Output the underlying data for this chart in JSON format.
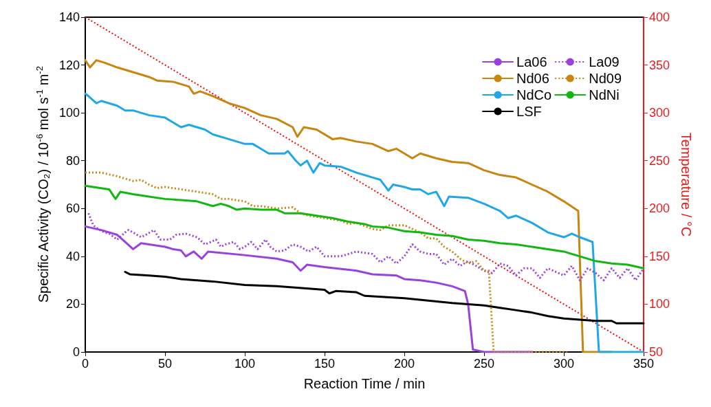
{
  "chart_data": {
    "type": "line",
    "xlabel": "Reaction Time / min",
    "ylabel": "Specific Activity (CO₂) / 10$^{-6}$ mol s$^{-1}$ m$^{-2}$",
    "y2label": "Temperature / °C",
    "xlim": [
      0,
      350
    ],
    "xticks": [
      0,
      50,
      100,
      150,
      200,
      250,
      300,
      350
    ],
    "ylim": [
      0,
      140
    ],
    "yticks": [
      0,
      20,
      40,
      60,
      80,
      100,
      120,
      140
    ],
    "y2lim": [
      50,
      400
    ],
    "y2ticks": [
      50,
      100,
      150,
      200,
      250,
      300,
      350,
      400
    ],
    "grid": false,
    "legend": "top right",
    "marker": "none",
    "series": [
      {
        "name": "La06",
        "color": "#9b40e0",
        "line_style": "solid",
        "x": [
          0,
          10,
          20,
          25,
          30,
          35,
          50,
          55,
          60,
          63,
          68,
          73,
          77,
          100,
          120,
          130,
          135,
          139,
          150,
          170,
          180,
          195,
          200,
          210,
          220,
          230,
          238,
          240,
          243,
          250,
          280
        ],
        "values": [
          52.5,
          51,
          49,
          46,
          43,
          45.5,
          44,
          43,
          42.5,
          40,
          42,
          39,
          42,
          40.5,
          39,
          37.5,
          34,
          36.5,
          35.5,
          34,
          32.5,
          32,
          30.5,
          30,
          29,
          27.5,
          25.5,
          20,
          1,
          0,
          0
        ]
      },
      {
        "name": "Nd06",
        "color": "#c8860e",
        "line_style": "solid",
        "x": [
          0,
          3,
          7,
          12,
          20,
          30,
          40,
          45,
          55,
          60,
          65,
          68,
          72,
          80,
          90,
          100,
          110,
          120,
          130,
          133,
          137,
          145,
          155,
          160,
          170,
          180,
          190,
          195,
          200,
          205,
          210,
          220,
          230,
          240,
          250,
          260,
          270,
          280,
          290,
          300,
          309,
          312,
          330
        ],
        "values": [
          122,
          119,
          122,
          121,
          119,
          117,
          115,
          113.5,
          113,
          112,
          111,
          108,
          109,
          107,
          104,
          102,
          99,
          97.5,
          94,
          90,
          94,
          93,
          89,
          89.5,
          88,
          87,
          84,
          85,
          83,
          81,
          83,
          81,
          79.5,
          79,
          76,
          74,
          73,
          70,
          67,
          63,
          59,
          0,
          0
        ]
      },
      {
        "name": "NdCo",
        "color": "#1ea8e8",
        "line_style": "solid",
        "x": [
          0,
          2,
          7,
          10,
          20,
          25,
          30,
          40,
          50,
          55,
          60,
          65,
          75,
          80,
          90,
          100,
          105,
          110,
          115,
          120,
          125,
          127,
          132,
          135,
          139,
          143,
          147,
          150,
          160,
          170,
          180,
          185,
          190,
          193,
          200,
          205,
          210,
          215,
          220,
          225,
          228,
          240,
          250,
          260,
          265,
          270,
          280,
          290,
          300,
          305,
          310,
          318,
          322,
          350
        ],
        "values": [
          108,
          107,
          104,
          105,
          103,
          101,
          101,
          99,
          98,
          96,
          94,
          95,
          93,
          91,
          89,
          87,
          87,
          85,
          83,
          83,
          83,
          84,
          80,
          78,
          80,
          75,
          79,
          78,
          77.5,
          75,
          73,
          72,
          67.5,
          70,
          69,
          68,
          68,
          66,
          67,
          61,
          65,
          64.5,
          62,
          59,
          56,
          57,
          54,
          50,
          48,
          49.5,
          48,
          46,
          0,
          0
        ]
      },
      {
        "name": "LSF",
        "color": "#000000",
        "line_style": "solid",
        "x": [
          25,
          28,
          40,
          50,
          60,
          70,
          80,
          100,
          120,
          140,
          150,
          153,
          157,
          170,
          175,
          200,
          215,
          230,
          250,
          260,
          270,
          280,
          290,
          300,
          310,
          320,
          330,
          333,
          340,
          350
        ],
        "values": [
          33.5,
          32.5,
          32,
          31.5,
          30.5,
          30,
          29.5,
          28,
          27.5,
          26.5,
          26,
          24.5,
          25.5,
          25,
          23.5,
          22.5,
          21.5,
          20.5,
          19.5,
          18.5,
          17.5,
          16.5,
          15,
          14,
          13.5,
          13,
          13,
          12,
          12,
          12
        ]
      },
      {
        "name": "La09",
        "color": "#9b40e0",
        "line_style": "dotted",
        "x": [
          2,
          5,
          8,
          12,
          15,
          20,
          25,
          27,
          30,
          35,
          38,
          43,
          47,
          53,
          57,
          63,
          70,
          75,
          77,
          82,
          85,
          88,
          93,
          97,
          100,
          104,
          108,
          113,
          116,
          120,
          125,
          130,
          135,
          140,
          145,
          150,
          160,
          170,
          180,
          185,
          190,
          195,
          200,
          205,
          210,
          215,
          220,
          225,
          230,
          235,
          240,
          245,
          250,
          255,
          260,
          265,
          270,
          275,
          280,
          285,
          290,
          300,
          305,
          310,
          315,
          320,
          325,
          330,
          335,
          340,
          345,
          350
        ],
        "values": [
          58,
          53,
          51.5,
          50,
          49.5,
          47,
          50,
          51,
          50,
          48,
          49,
          51,
          47,
          47,
          49,
          49.5,
          48,
          45,
          45.5,
          47,
          44,
          45,
          46,
          43,
          44,
          46,
          43,
          47,
          44,
          42,
          42.5,
          45,
          44,
          42,
          44,
          40,
          40,
          42,
          41,
          37.5,
          40,
          37,
          40,
          45,
          42,
          41,
          41,
          36.5,
          39,
          36,
          38,
          36,
          34,
          33,
          37,
          36,
          32,
          35,
          35,
          31,
          35,
          32,
          36,
          30,
          35,
          33,
          30,
          35,
          31,
          35,
          30,
          35
        ]
      },
      {
        "name": "Nd09",
        "color": "#c8860e",
        "line_style": "dotted",
        "x": [
          0,
          10,
          20,
          30,
          35,
          40,
          45,
          50,
          60,
          70,
          80,
          85,
          90,
          100,
          105,
          110,
          120,
          130,
          135,
          140,
          150,
          160,
          165,
          170,
          180,
          185,
          190,
          200,
          210,
          215,
          220,
          225,
          230,
          235,
          240,
          245,
          250,
          253,
          256,
          302
        ],
        "values": [
          75,
          75,
          73.5,
          71.5,
          72,
          70,
          68.5,
          69,
          68,
          67,
          66,
          64,
          64,
          63,
          61,
          61,
          60,
          60.5,
          58,
          57,
          56,
          55,
          53.5,
          54,
          51.5,
          51,
          53,
          53,
          50,
          47.5,
          47.5,
          44,
          42,
          39,
          37,
          38,
          34,
          34,
          0,
          0
        ]
      },
      {
        "name": "NdNi",
        "color": "#12b812",
        "line_style": "solid",
        "x": [
          0,
          10,
          15,
          19,
          22,
          30,
          40,
          50,
          60,
          70,
          80,
          85,
          90,
          95,
          100,
          110,
          120,
          125,
          135,
          145,
          155,
          165,
          175,
          180,
          190,
          200,
          210,
          220,
          230,
          240,
          250,
          260,
          270,
          280,
          290,
          300,
          310,
          320,
          330,
          340,
          350
        ],
        "values": [
          69.5,
          68.5,
          68,
          64,
          67,
          66,
          65,
          64,
          63.5,
          63,
          61,
          62,
          61,
          59.5,
          60,
          59.5,
          59.5,
          58,
          58,
          57,
          56,
          54.5,
          53.5,
          52.5,
          52,
          50.5,
          50,
          49,
          48.5,
          47,
          46.5,
          45.5,
          45,
          44,
          43,
          42,
          40,
          38,
          37,
          36.5,
          35
        ]
      },
      {
        "color": "#ff0000",
        "line_style": "dotted",
        "axis": "y2",
        "x": [
          0,
          350
        ],
        "values": [
          400,
          50
        ]
      }
    ]
  }
}
